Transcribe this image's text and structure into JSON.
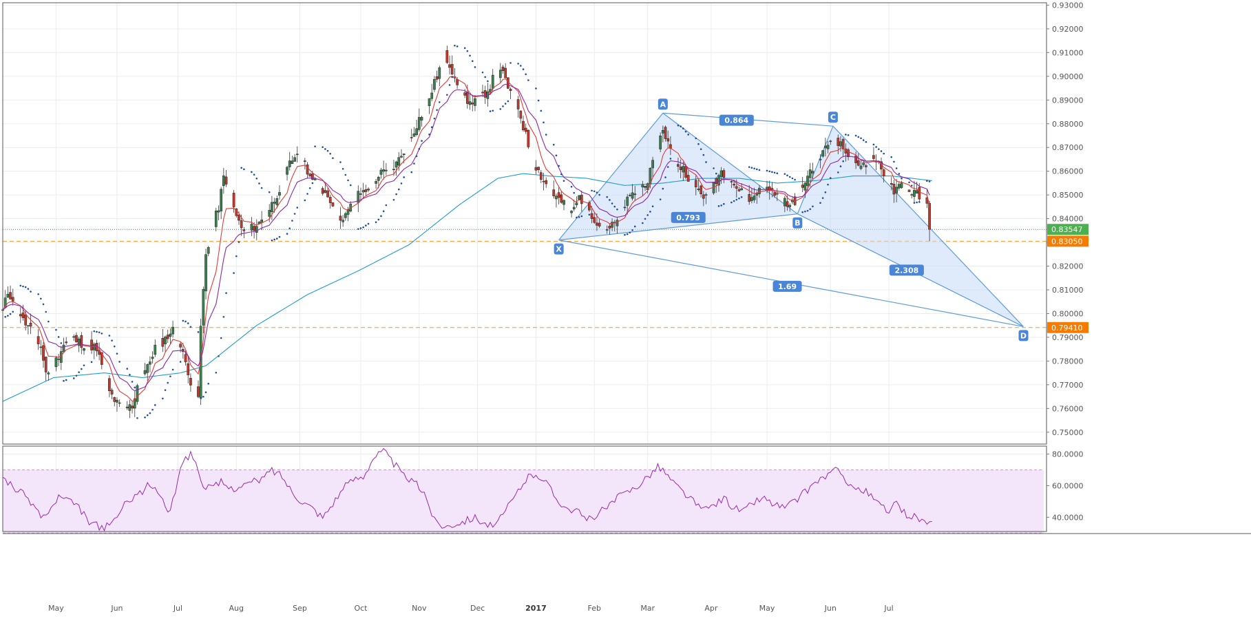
{
  "chart_data": {
    "type": "candlestick",
    "main_panel": {
      "y_axis": {
        "min": 0.745,
        "max": 0.931,
        "ticks": [
          0.93,
          0.92,
          0.91,
          0.9,
          0.89,
          0.88,
          0.87,
          0.86,
          0.85,
          0.84,
          0.83,
          0.82,
          0.81,
          0.8,
          0.79,
          0.78,
          0.77,
          0.76,
          0.75
        ],
        "tick_labels": [
          "0.93000",
          "0.92000",
          "0.91000",
          "0.90000",
          "0.89000",
          "0.88000",
          "0.87000",
          "0.86000",
          "0.85000",
          "0.84000",
          "0.83000",
          "0.82000",
          "0.81000",
          "0.80000",
          "0.79000",
          "0.78000",
          "0.77000",
          "0.76000",
          "0.75000"
        ],
        "position": "right"
      },
      "price_markers": [
        {
          "label": "0.83547",
          "value": 0.83547,
          "color": "#4caf50"
        },
        {
          "label": "0.83050",
          "value": 0.8305,
          "color": "#f57c00"
        },
        {
          "label": "0.79410",
          "value": 0.7941,
          "color": "#f57c00"
        }
      ],
      "horizontal_lines": [
        {
          "value": 0.8305,
          "style": "dashed",
          "color": "#f59a23"
        },
        {
          "value": 0.7941,
          "style": "dashed",
          "color": "#f59a23"
        },
        {
          "value": 0.83547,
          "style": "dotted",
          "color": "#2b8a8a"
        }
      ],
      "harmonic_pattern": {
        "points": [
          {
            "label": "X",
            "day": 219,
            "value": 0.831
          },
          {
            "label": "A",
            "day": 260,
            "value": 0.8845
          },
          {
            "label": "B",
            "day": 313,
            "value": 0.842
          },
          {
            "label": "C",
            "day": 327,
            "value": 0.879
          },
          {
            "label": "D",
            "day": 402,
            "value": 0.7945
          }
        ],
        "ratios": [
          {
            "label": "0.864",
            "day": 289,
            "value": 0.8815
          },
          {
            "label": "0.793",
            "day": 270,
            "value": 0.8405
          },
          {
            "label": "1.69",
            "day": 309,
            "value": 0.8115
          },
          {
            "label": "2.308",
            "day": 356,
            "value": 0.8183
          }
        ],
        "fill": "#c5d8f5",
        "line": "#5b9be0"
      },
      "ohlc_anchors": [
        [
          0,
          0.801
        ],
        [
          2,
          0.809
        ],
        [
          5,
          0.805
        ],
        [
          8,
          0.797
        ],
        [
          12,
          0.792
        ],
        [
          15,
          0.786
        ],
        [
          17,
          0.775
        ],
        [
          20,
          0.778
        ],
        [
          24,
          0.787
        ],
        [
          28,
          0.789
        ],
        [
          32,
          0.787
        ],
        [
          36,
          0.786
        ],
        [
          39,
          0.779
        ],
        [
          42,
          0.767
        ],
        [
          45,
          0.762
        ],
        [
          48,
          0.76
        ],
        [
          51,
          0.761
        ],
        [
          54,
          0.774
        ],
        [
          57,
          0.777
        ],
        [
          60,
          0.786
        ],
        [
          63,
          0.788
        ],
        [
          66,
          0.792
        ],
        [
          68,
          0.794
        ],
        [
          70,
          0.786
        ],
        [
          73,
          0.776
        ],
        [
          75,
          0.767
        ],
        [
          77,
          0.765
        ],
        [
          78,
          0.794
        ],
        [
          80,
          0.825
        ],
        [
          82,
          0.834
        ],
        [
          85,
          0.845
        ],
        [
          87,
          0.857
        ],
        [
          90,
          0.848
        ],
        [
          92,
          0.841
        ],
        [
          95,
          0.834
        ],
        [
          98,
          0.836
        ],
        [
          101,
          0.838
        ],
        [
          104,
          0.842
        ],
        [
          107,
          0.848
        ],
        [
          110,
          0.855
        ],
        [
          113,
          0.863
        ],
        [
          116,
          0.868
        ],
        [
          119,
          0.863
        ],
        [
          122,
          0.856
        ],
        [
          125,
          0.853
        ],
        [
          128,
          0.85
        ],
        [
          131,
          0.845
        ],
        [
          134,
          0.839
        ],
        [
          137,
          0.845
        ],
        [
          140,
          0.85
        ],
        [
          143,
          0.852
        ],
        [
          146,
          0.856
        ],
        [
          149,
          0.859
        ],
        [
          152,
          0.86
        ],
        [
          155,
          0.863
        ],
        [
          158,
          0.869
        ],
        [
          161,
          0.875
        ],
        [
          164,
          0.882
        ],
        [
          167,
          0.888
        ],
        [
          170,
          0.897
        ],
        [
          172,
          0.903
        ],
        [
          174,
          0.909
        ],
        [
          176,
          0.905
        ],
        [
          179,
          0.898
        ],
        [
          182,
          0.891
        ],
        [
          185,
          0.888
        ],
        [
          188,
          0.891
        ],
        [
          191,
          0.894
        ],
        [
          194,
          0.901
        ],
        [
          197,
          0.901
        ],
        [
          200,
          0.893
        ],
        [
          203,
          0.887
        ],
        [
          206,
          0.875
        ],
        [
          209,
          0.864
        ],
        [
          212,
          0.858
        ],
        [
          215,
          0.853
        ],
        [
          218,
          0.849
        ],
        [
          221,
          0.846
        ],
        [
          224,
          0.842
        ],
        [
          227,
          0.849
        ],
        [
          230,
          0.846
        ],
        [
          233,
          0.84
        ],
        [
          236,
          0.837
        ],
        [
          239,
          0.836
        ],
        [
          242,
          0.839
        ],
        [
          245,
          0.846
        ],
        [
          248,
          0.85
        ],
        [
          251,
          0.853
        ],
        [
          254,
          0.856
        ],
        [
          257,
          0.866
        ],
        [
          260,
          0.878
        ],
        [
          262,
          0.872
        ],
        [
          265,
          0.863
        ],
        [
          268,
          0.861
        ],
        [
          271,
          0.856
        ],
        [
          274,
          0.852
        ],
        [
          277,
          0.849
        ],
        [
          280,
          0.855
        ],
        [
          283,
          0.86
        ],
        [
          286,
          0.858
        ],
        [
          289,
          0.853
        ],
        [
          292,
          0.85
        ],
        [
          295,
          0.848
        ],
        [
          298,
          0.853
        ],
        [
          301,
          0.852
        ],
        [
          304,
          0.851
        ],
        [
          307,
          0.848
        ],
        [
          310,
          0.845
        ],
        [
          313,
          0.849
        ],
        [
          316,
          0.856
        ],
        [
          319,
          0.862
        ],
        [
          322,
          0.866
        ],
        [
          325,
          0.871
        ],
        [
          327,
          0.876
        ],
        [
          330,
          0.871
        ],
        [
          333,
          0.867
        ],
        [
          336,
          0.865
        ],
        [
          339,
          0.862
        ],
        [
          342,
          0.864
        ],
        [
          345,
          0.863
        ],
        [
          348,
          0.858
        ],
        [
          351,
          0.852
        ],
        [
          354,
          0.855
        ],
        [
          357,
          0.852
        ],
        [
          360,
          0.85
        ],
        [
          363,
          0.848
        ],
        [
          364,
          0.846
        ],
        [
          365,
          0.836
        ]
      ],
      "sma_long_anchors": [
        [
          0,
          0.763
        ],
        [
          20,
          0.773
        ],
        [
          40,
          0.775
        ],
        [
          55,
          0.773
        ],
        [
          70,
          0.775
        ],
        [
          80,
          0.778
        ],
        [
          100,
          0.795
        ],
        [
          120,
          0.808
        ],
        [
          140,
          0.818
        ],
        [
          160,
          0.829
        ],
        [
          180,
          0.846
        ],
        [
          195,
          0.857
        ],
        [
          205,
          0.859
        ],
        [
          215,
          0.858
        ],
        [
          230,
          0.857
        ],
        [
          245,
          0.854
        ],
        [
          260,
          0.855
        ],
        [
          275,
          0.857
        ],
        [
          290,
          0.857
        ],
        [
          305,
          0.855
        ],
        [
          320,
          0.856
        ],
        [
          335,
          0.858
        ],
        [
          350,
          0.858
        ],
        [
          366,
          0.856
        ]
      ]
    },
    "indicator_panel": {
      "type": "line",
      "y_axis": {
        "min": 31,
        "max": 85,
        "ticks": [
          80,
          60,
          40
        ],
        "tick_labels": [
          "80.0000",
          "60.0000",
          "40.0000"
        ],
        "position": "right"
      },
      "band": {
        "upper": 70,
        "lower": 30
      },
      "values_anchors": [
        [
          0,
          66
        ],
        [
          5,
          58
        ],
        [
          10,
          52
        ],
        [
          15,
          41
        ],
        [
          18,
          42
        ],
        [
          22,
          53
        ],
        [
          26,
          50
        ],
        [
          30,
          46
        ],
        [
          34,
          37
        ],
        [
          38,
          34
        ],
        [
          42,
          34
        ],
        [
          46,
          43
        ],
        [
          50,
          52
        ],
        [
          54,
          55
        ],
        [
          58,
          61
        ],
        [
          62,
          54
        ],
        [
          66,
          42
        ],
        [
          70,
          73
        ],
        [
          74,
          80
        ],
        [
          76,
          76
        ],
        [
          78,
          62
        ],
        [
          82,
          58
        ],
        [
          86,
          62
        ],
        [
          90,
          58
        ],
        [
          94,
          60
        ],
        [
          98,
          62
        ],
        [
          102,
          64
        ],
        [
          106,
          70
        ],
        [
          110,
          66
        ],
        [
          114,
          56
        ],
        [
          118,
          50
        ],
        [
          122,
          46
        ],
        [
          126,
          40
        ],
        [
          130,
          49
        ],
        [
          134,
          58
        ],
        [
          138,
          64
        ],
        [
          142,
          66
        ],
        [
          146,
          78
        ],
        [
          150,
          82
        ],
        [
          154,
          74
        ],
        [
          158,
          66
        ],
        [
          162,
          62
        ],
        [
          166,
          56
        ],
        [
          170,
          38
        ],
        [
          174,
          34
        ],
        [
          178,
          36
        ],
        [
          182,
          38
        ],
        [
          186,
          40
        ],
        [
          190,
          36
        ],
        [
          194,
          34
        ],
        [
          198,
          44
        ],
        [
          202,
          54
        ],
        [
          206,
          64
        ],
        [
          210,
          68
        ],
        [
          214,
          62
        ],
        [
          218,
          52
        ],
        [
          222,
          46
        ],
        [
          226,
          44
        ],
        [
          230,
          38
        ],
        [
          234,
          42
        ],
        [
          238,
          46
        ],
        [
          242,
          52
        ],
        [
          246,
          56
        ],
        [
          250,
          60
        ],
        [
          254,
          66
        ],
        [
          258,
          72
        ],
        [
          260,
          70
        ],
        [
          264,
          62
        ],
        [
          268,
          56
        ],
        [
          272,
          50
        ],
        [
          276,
          44
        ],
        [
          280,
          48
        ],
        [
          284,
          52
        ],
        [
          288,
          46
        ],
        [
          292,
          44
        ],
        [
          296,
          50
        ],
        [
          300,
          52
        ],
        [
          304,
          48
        ],
        [
          308,
          46
        ],
        [
          312,
          50
        ],
        [
          316,
          56
        ],
        [
          320,
          62
        ],
        [
          324,
          66
        ],
        [
          328,
          70
        ],
        [
          332,
          64
        ],
        [
          336,
          58
        ],
        [
          340,
          56
        ],
        [
          344,
          50
        ],
        [
          348,
          44
        ],
        [
          352,
          48
        ],
        [
          356,
          42
        ],
        [
          360,
          40
        ],
        [
          364,
          36
        ],
        [
          366,
          35
        ]
      ]
    },
    "x_axis": {
      "days_span": 410,
      "labels": [
        {
          "label": "May",
          "day": 21,
          "bold": false
        },
        {
          "label": "Jun",
          "day": 45,
          "bold": false
        },
        {
          "label": "Jul",
          "day": 69,
          "bold": false
        },
        {
          "label": "Aug",
          "day": 92,
          "bold": false
        },
        {
          "label": "Sep",
          "day": 117,
          "bold": false
        },
        {
          "label": "Oct",
          "day": 141,
          "bold": false
        },
        {
          "label": "Nov",
          "day": 164,
          "bold": false
        },
        {
          "label": "Dec",
          "day": 187,
          "bold": false
        },
        {
          "label": "2017",
          "day": 210,
          "bold": true
        },
        {
          "label": "Feb",
          "day": 233,
          "bold": false
        },
        {
          "label": "Mar",
          "day": 254,
          "bold": false
        },
        {
          "label": "Apr",
          "day": 279,
          "bold": false
        },
        {
          "label": "May",
          "day": 301,
          "bold": false
        },
        {
          "label": "Jun",
          "day": 326,
          "bold": false
        },
        {
          "label": "Jul",
          "day": 349,
          "bold": false
        }
      ]
    },
    "colors": {
      "bull": "#3d7f4f",
      "bear": "#c0392b",
      "ema_fast": "#e53935",
      "ema_slow": "#8e24aa",
      "sma_long": "#1e9bd7",
      "psar": "#1f4e9c",
      "indicator": "#9c27b0",
      "indicator_band": "#f3e6fb",
      "grid": "#ececec",
      "axis_text": "#555555"
    }
  }
}
